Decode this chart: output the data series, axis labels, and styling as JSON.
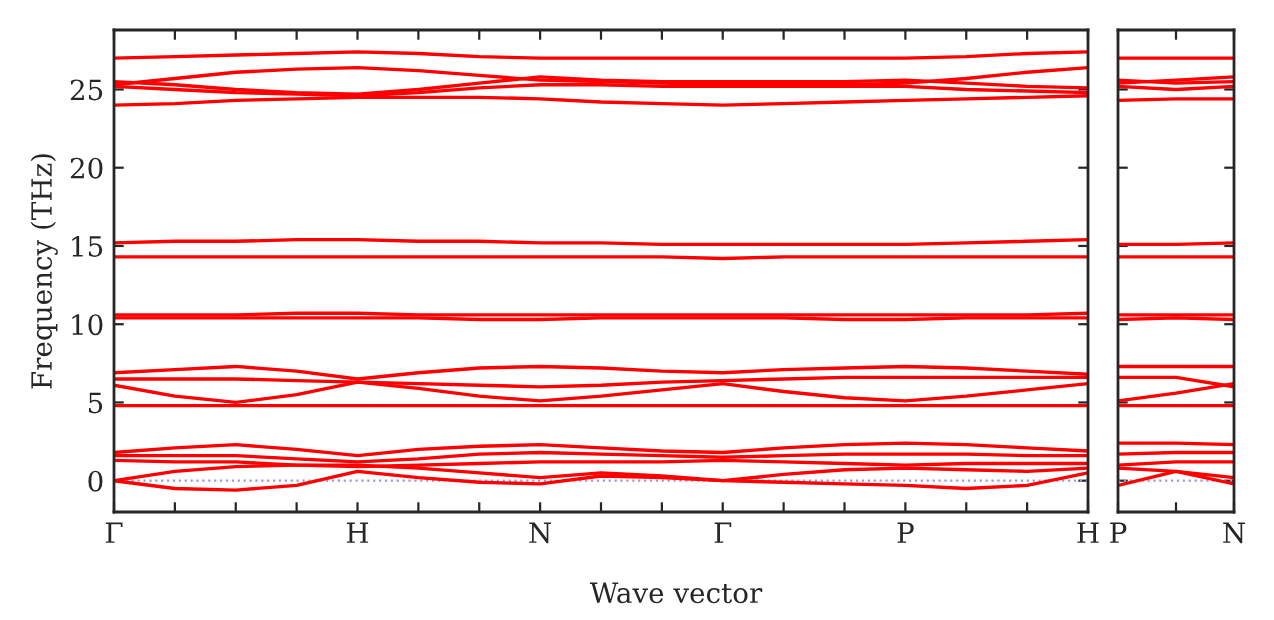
{
  "chart_data": [
    {
      "type": "line",
      "ylabel": "Frequency (THz)",
      "xlabel": "Wave vector",
      "categories": [
        "Γ",
        null,
        null,
        null,
        "H",
        null,
        null,
        "N",
        null,
        null,
        "Γ",
        null,
        null,
        "P",
        null,
        null,
        "H"
      ],
      "ylim": [
        -2,
        28.8
      ],
      "yticks": [
        0,
        5,
        10,
        15,
        20,
        25
      ],
      "grid": false,
      "marker": "none",
      "line_style": "solid",
      "ref_lines": [
        {
          "axis": "y",
          "value": 0,
          "color": "#9999dd",
          "line_style": "dotted"
        }
      ],
      "series": [
        {
          "color": "#ff0000",
          "values": [
            27.0,
            27.1,
            27.2,
            27.3,
            27.4,
            27.3,
            27.1,
            27.0,
            27.0,
            27.0,
            27.0,
            27.0,
            27.0,
            27.0,
            27.1,
            27.3,
            27.4
          ]
        },
        {
          "color": "#ff0000",
          "values": [
            25.3,
            25.7,
            26.1,
            26.3,
            26.4,
            26.2,
            25.9,
            25.6,
            25.5,
            25.4,
            25.3,
            25.3,
            25.3,
            25.4,
            25.7,
            26.1,
            26.4
          ]
        },
        {
          "color": "#ff0000",
          "values": [
            25.5,
            25.3,
            25.0,
            24.8,
            24.7,
            25.0,
            25.4,
            25.8,
            25.6,
            25.5,
            25.5,
            25.5,
            25.5,
            25.6,
            25.4,
            25.2,
            25.1
          ]
        },
        {
          "color": "#ff0000",
          "values": [
            25.2,
            25.0,
            24.8,
            24.7,
            24.6,
            24.8,
            25.1,
            25.3,
            25.3,
            25.2,
            25.2,
            25.2,
            25.2,
            25.2,
            25.0,
            24.9,
            24.8
          ]
        },
        {
          "color": "#ff0000",
          "values": [
            24.0,
            24.1,
            24.3,
            24.4,
            24.5,
            24.5,
            24.5,
            24.4,
            24.2,
            24.1,
            24.0,
            24.1,
            24.2,
            24.3,
            24.4,
            24.5,
            24.6
          ]
        },
        {
          "color": "#ff0000",
          "values": [
            15.2,
            15.3,
            15.3,
            15.4,
            15.4,
            15.3,
            15.3,
            15.2,
            15.2,
            15.1,
            15.1,
            15.1,
            15.1,
            15.1,
            15.2,
            15.3,
            15.4
          ]
        },
        {
          "color": "#ff0000",
          "values": [
            14.3,
            14.3,
            14.3,
            14.3,
            14.3,
            14.3,
            14.3,
            14.3,
            14.3,
            14.3,
            14.2,
            14.3,
            14.3,
            14.3,
            14.3,
            14.3,
            14.3
          ]
        },
        {
          "color": "#ff0000",
          "values": [
            10.6,
            10.6,
            10.6,
            10.7,
            10.7,
            10.6,
            10.6,
            10.6,
            10.6,
            10.6,
            10.6,
            10.6,
            10.6,
            10.6,
            10.6,
            10.6,
            10.7
          ]
        },
        {
          "color": "#ff0000",
          "values": [
            10.4,
            10.4,
            10.4,
            10.4,
            10.4,
            10.4,
            10.3,
            10.3,
            10.4,
            10.4,
            10.4,
            10.4,
            10.3,
            10.3,
            10.4,
            10.4,
            10.4
          ]
        },
        {
          "color": "#ff0000",
          "values": [
            6.9,
            7.1,
            7.3,
            7.0,
            6.5,
            6.9,
            7.2,
            7.3,
            7.2,
            7.0,
            6.9,
            7.1,
            7.2,
            7.3,
            7.2,
            7.0,
            6.8
          ]
        },
        {
          "color": "#ff0000",
          "values": [
            6.5,
            6.5,
            6.5,
            6.4,
            6.3,
            6.2,
            6.1,
            6.0,
            6.1,
            6.3,
            6.4,
            6.5,
            6.6,
            6.6,
            6.6,
            6.6,
            6.6
          ]
        },
        {
          "color": "#ff0000",
          "values": [
            6.1,
            5.4,
            5.0,
            5.5,
            6.3,
            5.9,
            5.4,
            5.1,
            5.4,
            5.8,
            6.2,
            5.7,
            5.3,
            5.1,
            5.4,
            5.8,
            6.2
          ]
        },
        {
          "color": "#ff0000",
          "values": [
            4.8,
            4.8,
            4.8,
            4.8,
            4.8,
            4.8,
            4.8,
            4.8,
            4.8,
            4.8,
            4.8,
            4.8,
            4.8,
            4.8,
            4.8,
            4.8,
            4.8
          ]
        },
        {
          "color": "#ff0000",
          "values": [
            1.8,
            2.1,
            2.3,
            2.0,
            1.6,
            2.0,
            2.2,
            2.3,
            2.1,
            1.9,
            1.8,
            2.1,
            2.3,
            2.4,
            2.3,
            2.1,
            1.9
          ]
        },
        {
          "color": "#ff0000",
          "values": [
            1.6,
            1.6,
            1.6,
            1.4,
            1.2,
            1.4,
            1.7,
            1.8,
            1.7,
            1.6,
            1.5,
            1.6,
            1.7,
            1.7,
            1.7,
            1.6,
            1.6
          ]
        },
        {
          "color": "#ff0000",
          "values": [
            1.3,
            1.2,
            1.2,
            1.0,
            0.9,
            1.0,
            1.1,
            1.2,
            1.2,
            1.2,
            1.3,
            1.2,
            1.1,
            1.0,
            1.1,
            1.1,
            1.1
          ]
        },
        {
          "color": "#ff0000",
          "values": [
            0,
            0.6,
            0.9,
            1.0,
            1.0,
            0.8,
            0.5,
            0.2,
            0.5,
            0.3,
            0,
            0.4,
            0.7,
            0.8,
            0.7,
            0.6,
            0.8
          ]
        },
        {
          "color": "#ff0000",
          "values": [
            0,
            -0.5,
            -0.6,
            -0.3,
            0.6,
            0.2,
            -0.1,
            -0.2,
            0.3,
            0.2,
            0,
            -0.1,
            -0.2,
            -0.3,
            -0.5,
            -0.3,
            0.5
          ]
        }
      ]
    },
    {
      "type": "line",
      "categories": [
        "P",
        null,
        "N"
      ],
      "ylim": [
        -2,
        28.8
      ],
      "yticks": [
        0,
        5,
        10,
        15,
        20,
        25
      ],
      "tick_labels": "x",
      "grid": false,
      "marker": "none",
      "line_style": "solid",
      "ref_lines": [
        {
          "axis": "y",
          "value": 0,
          "color": "#9999dd",
          "line_style": "dotted"
        }
      ],
      "series": [
        {
          "color": "#ff0000",
          "values": [
            27.0,
            27.0,
            27.0
          ]
        },
        {
          "color": "#ff0000",
          "values": [
            25.4,
            25.6,
            25.8
          ]
        },
        {
          "color": "#ff0000",
          "values": [
            25.6,
            25.4,
            25.5
          ]
        },
        {
          "color": "#ff0000",
          "values": [
            25.2,
            25.0,
            25.2
          ]
        },
        {
          "color": "#ff0000",
          "values": [
            24.3,
            24.4,
            24.4
          ]
        },
        {
          "color": "#ff0000",
          "values": [
            15.1,
            15.1,
            15.2
          ]
        },
        {
          "color": "#ff0000",
          "values": [
            14.3,
            14.3,
            14.3
          ]
        },
        {
          "color": "#ff0000",
          "values": [
            10.6,
            10.6,
            10.6
          ]
        },
        {
          "color": "#ff0000",
          "values": [
            10.3,
            10.4,
            10.3
          ]
        },
        {
          "color": "#ff0000",
          "values": [
            7.3,
            7.3,
            7.3
          ]
        },
        {
          "color": "#ff0000",
          "values": [
            6.6,
            6.6,
            6.0
          ]
        },
        {
          "color": "#ff0000",
          "values": [
            5.1,
            5.6,
            6.2
          ]
        },
        {
          "color": "#ff0000",
          "values": [
            4.8,
            4.8,
            4.8
          ]
        },
        {
          "color": "#ff0000",
          "values": [
            2.4,
            2.4,
            2.3
          ]
        },
        {
          "color": "#ff0000",
          "values": [
            1.7,
            1.8,
            1.8
          ]
        },
        {
          "color": "#ff0000",
          "values": [
            1.0,
            1.2,
            1.2
          ]
        },
        {
          "color": "#ff0000",
          "values": [
            0.8,
            0.6,
            0.2
          ]
        },
        {
          "color": "#ff0000",
          "values": [
            -0.3,
            0.6,
            -0.2
          ]
        }
      ]
    }
  ]
}
